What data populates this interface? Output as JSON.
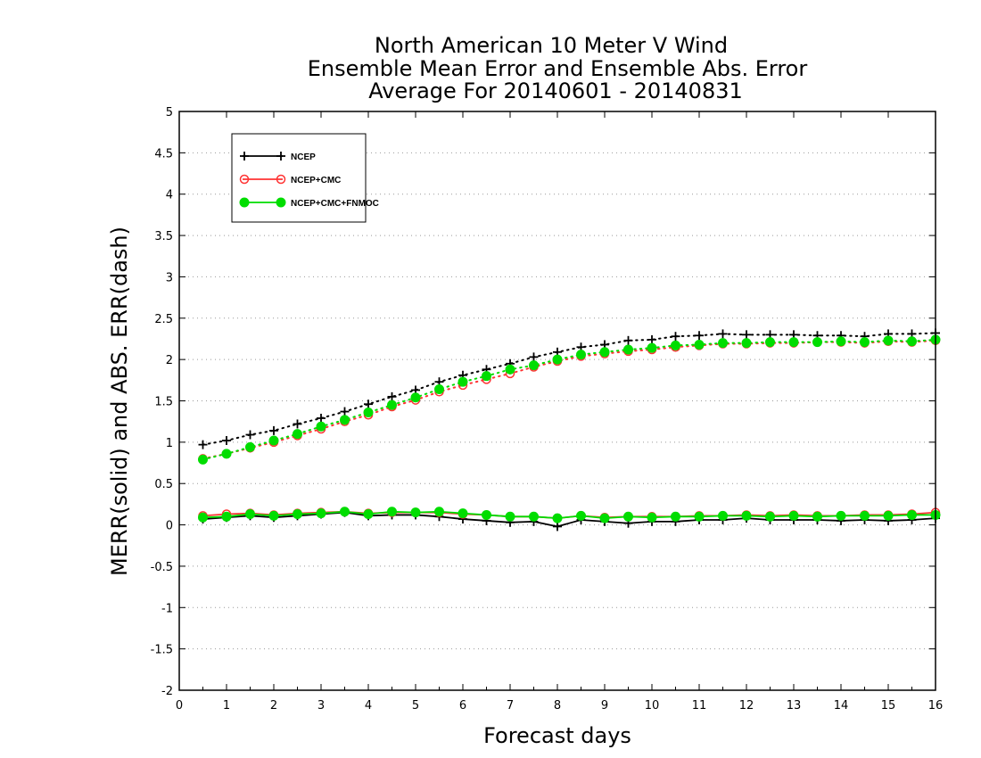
{
  "chart_data": {
    "type": "line",
    "title": [
      "North American 10 Meter V Wind",
      "Ensemble Mean Error and Ensemble Abs. Error",
      "Average For 20140601 - 20140831"
    ],
    "xlabel": "Forecast days",
    "ylabel": "MERR(solid) and ABS. ERR(dash)",
    "xlim": [
      0,
      16
    ],
    "ylim": [
      -2,
      5
    ],
    "xticks": [
      0,
      1,
      2,
      3,
      4,
      5,
      6,
      7,
      8,
      9,
      10,
      11,
      12,
      13,
      14,
      15,
      16
    ],
    "yticks": [
      -2,
      -1.5,
      -1,
      -0.5,
      0,
      0.5,
      1,
      1.5,
      2,
      2.5,
      3,
      3.5,
      4,
      4.5,
      5
    ],
    "grid": "horizontal dotted",
    "legend_position": "top-left",
    "x": [
      0.5,
      1,
      1.5,
      2,
      2.5,
      3,
      3.5,
      4,
      4.5,
      5,
      5.5,
      6,
      6.5,
      7,
      7.5,
      8,
      8.5,
      9,
      9.5,
      10,
      10.5,
      11,
      11.5,
      12,
      12.5,
      13,
      13.5,
      14,
      14.5,
      15,
      15.5,
      16
    ],
    "series": [
      {
        "name": "NCEP",
        "color": "#000000",
        "marker": "plus",
        "merr": [
          0.07,
          0.09,
          0.11,
          0.09,
          0.11,
          0.13,
          0.15,
          0.11,
          0.12,
          0.12,
          0.1,
          0.07,
          0.05,
          0.03,
          0.04,
          -0.02,
          0.06,
          0.04,
          0.02,
          0.04,
          0.04,
          0.06,
          0.06,
          0.08,
          0.06,
          0.06,
          0.06,
          0.05,
          0.06,
          0.05,
          0.06,
          0.08
        ],
        "abs_err": [
          0.97,
          1.02,
          1.09,
          1.14,
          1.22,
          1.29,
          1.37,
          1.46,
          1.55,
          1.63,
          1.73,
          1.81,
          1.88,
          1.95,
          2.03,
          2.09,
          2.15,
          2.18,
          2.23,
          2.24,
          2.28,
          2.29,
          2.31,
          2.3,
          2.3,
          2.3,
          2.29,
          2.29,
          2.28,
          2.31,
          2.31,
          2.32
        ]
      },
      {
        "name": "NCEP+CMC",
        "color": "#ff3333",
        "marker": "open-circle",
        "merr": [
          0.11,
          0.13,
          0.14,
          0.12,
          0.14,
          0.15,
          0.16,
          0.14,
          0.15,
          0.15,
          0.15,
          0.13,
          0.12,
          0.1,
          0.1,
          0.08,
          0.11,
          0.09,
          0.1,
          0.1,
          0.1,
          0.11,
          0.11,
          0.12,
          0.11,
          0.12,
          0.11,
          0.11,
          0.12,
          0.12,
          0.13,
          0.15
        ],
        "abs_err": [
          0.8,
          0.86,
          0.93,
          1.0,
          1.08,
          1.16,
          1.25,
          1.33,
          1.43,
          1.51,
          1.61,
          1.69,
          1.76,
          1.83,
          1.91,
          1.98,
          2.04,
          2.07,
          2.1,
          2.12,
          2.15,
          2.17,
          2.19,
          2.19,
          2.2,
          2.2,
          2.21,
          2.21,
          2.2,
          2.22,
          2.21,
          2.23
        ]
      },
      {
        "name": "NCEP+CMC+FNMOC",
        "color": "#00dd00",
        "marker": "filled-circle",
        "merr": [
          0.09,
          0.1,
          0.13,
          0.11,
          0.13,
          0.14,
          0.16,
          0.13,
          0.16,
          0.15,
          0.16,
          0.14,
          0.12,
          0.1,
          0.1,
          0.08,
          0.11,
          0.08,
          0.1,
          0.09,
          0.1,
          0.1,
          0.11,
          0.11,
          0.1,
          0.11,
          0.1,
          0.11,
          0.11,
          0.11,
          0.12,
          0.12
        ],
        "abs_err": [
          0.79,
          0.86,
          0.94,
          1.02,
          1.1,
          1.19,
          1.27,
          1.36,
          1.45,
          1.54,
          1.64,
          1.73,
          1.8,
          1.88,
          1.93,
          2.0,
          2.06,
          2.09,
          2.12,
          2.14,
          2.17,
          2.18,
          2.2,
          2.2,
          2.21,
          2.21,
          2.21,
          2.22,
          2.21,
          2.23,
          2.22,
          2.24
        ]
      }
    ]
  }
}
